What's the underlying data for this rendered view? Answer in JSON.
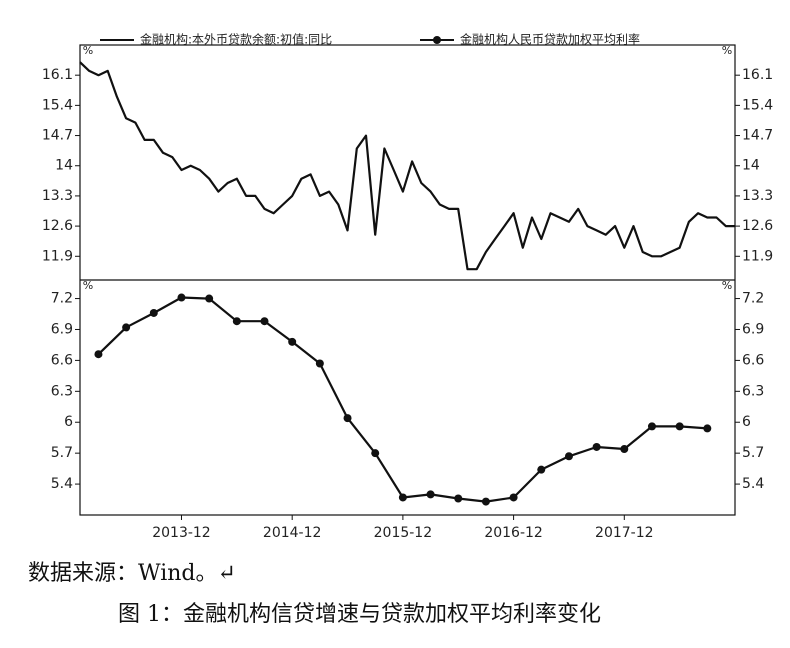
{
  "chart_data": [
    {
      "type": "line",
      "series": [
        {
          "name": "金融机构:本外币贷款余额:初值:同比",
          "color": "#111111",
          "marker": false,
          "x": [
            "2013-01",
            "2013-02",
            "2013-03",
            "2013-04",
            "2013-05",
            "2013-06",
            "2013-07",
            "2013-08",
            "2013-09",
            "2013-10",
            "2013-11",
            "2013-12",
            "2014-01",
            "2014-02",
            "2014-03",
            "2014-04",
            "2014-05",
            "2014-06",
            "2014-07",
            "2014-08",
            "2014-09",
            "2014-10",
            "2014-11",
            "2014-12",
            "2015-01",
            "2015-02",
            "2015-03",
            "2015-04",
            "2015-05",
            "2015-06",
            "2015-07",
            "2015-08",
            "2015-09",
            "2015-10",
            "2015-11",
            "2015-12",
            "2016-01",
            "2016-02",
            "2016-03",
            "2016-04",
            "2016-05",
            "2016-06",
            "2016-07",
            "2016-08",
            "2016-09",
            "2016-10",
            "2016-11",
            "2016-12",
            "2017-01",
            "2017-02",
            "2017-03",
            "2017-04",
            "2017-05",
            "2017-06",
            "2017-07",
            "2017-08",
            "2017-09",
            "2017-10",
            "2017-11",
            "2017-12",
            "2018-01",
            "2018-02",
            "2018-03",
            "2018-04",
            "2018-05",
            "2018-06",
            "2018-07",
            "2018-08",
            "2018-09",
            "2018-10",
            "2018-11",
            "2018-12"
          ],
          "values": [
            16.4,
            16.2,
            16.1,
            16.2,
            15.6,
            15.1,
            15.0,
            14.6,
            14.6,
            14.3,
            14.2,
            13.9,
            14.0,
            13.9,
            13.7,
            13.4,
            13.6,
            13.7,
            13.3,
            13.3,
            13.0,
            12.9,
            13.1,
            13.3,
            13.7,
            13.8,
            13.3,
            13.4,
            13.1,
            12.5,
            14.4,
            14.7,
            12.4,
            14.4,
            13.9,
            13.4,
            14.1,
            13.6,
            13.4,
            13.1,
            13.0,
            13.0,
            11.6,
            11.6,
            12.0,
            12.3,
            12.6,
            12.9,
            12.1,
            12.8,
            12.3,
            12.9,
            12.8,
            12.7,
            13.0,
            12.6,
            12.5,
            12.4,
            12.6,
            12.1,
            12.6,
            12.0,
            11.9,
            11.9,
            12.0,
            12.1,
            12.7,
            12.9,
            12.8,
            12.8,
            12.6,
            12.6
          ]
        }
      ],
      "xlim": [
        "2013-01",
        "2018-12"
      ],
      "ylim": [
        11.35,
        16.8
      ],
      "yticks": [
        11.9,
        12.6,
        13.3,
        14.0,
        14.7,
        15.4,
        16.1
      ],
      "y_unit": "%"
    },
    {
      "type": "line",
      "series": [
        {
          "name": "金融机构人民币贷款加权平均利率",
          "color": "#111111",
          "marker": true,
          "x": [
            "2013-03",
            "2013-06",
            "2013-09",
            "2013-12",
            "2014-03",
            "2014-06",
            "2014-09",
            "2014-12",
            "2015-03",
            "2015-06",
            "2015-09",
            "2015-12",
            "2016-03",
            "2016-06",
            "2016-09",
            "2016-12",
            "2017-03",
            "2017-06",
            "2017-09",
            "2017-12",
            "2018-03",
            "2018-06",
            "2018-09"
          ],
          "values": [
            6.66,
            6.92,
            7.06,
            7.21,
            7.2,
            6.98,
            6.98,
            6.78,
            6.57,
            6.04,
            5.7,
            5.27,
            5.3,
            5.26,
            5.23,
            5.27,
            5.54,
            5.67,
            5.76,
            5.74,
            5.96,
            5.96,
            5.94
          ]
        }
      ],
      "xlim": [
        "2013-01",
        "2018-12"
      ],
      "ylim": [
        5.1,
        7.38
      ],
      "yticks": [
        5.4,
        5.7,
        6.0,
        6.3,
        6.6,
        6.9,
        7.2
      ],
      "y_unit": "%",
      "xticks": [
        "2013-12",
        "2014-12",
        "2015-12",
        "2016-12",
        "2017-12"
      ]
    }
  ],
  "source": "数据来源：Wind。↵",
  "caption": "图 1：金融机构信贷增速与贷款加权平均利率变化"
}
